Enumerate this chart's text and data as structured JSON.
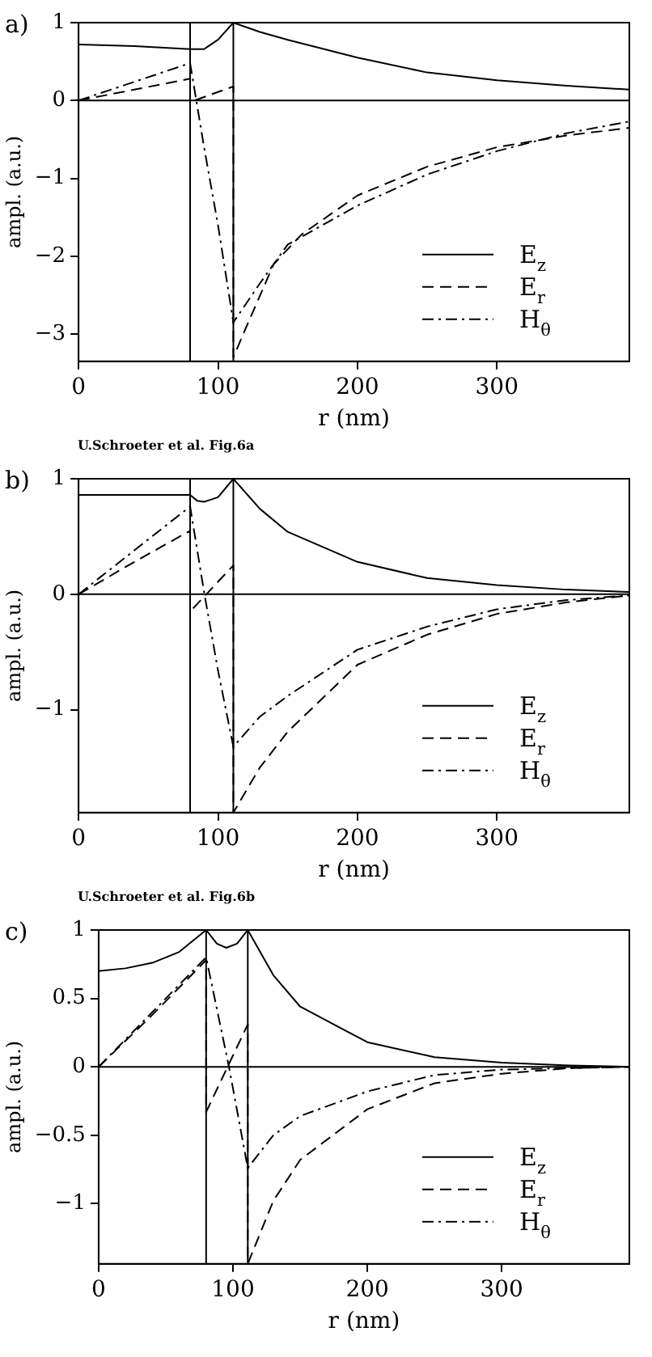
{
  "chart_data": [
    {
      "type": "line",
      "title": "a)",
      "xlabel": "r (nm)",
      "ylabel": "ampl. (a.u.)",
      "xlim": [
        0,
        395
      ],
      "xticks": [
        0,
        100,
        200,
        300
      ],
      "ylim": [
        -3.35,
        1
      ],
      "yticks": [
        {
          "value": -3,
          "label": "−3"
        },
        {
          "value": -2,
          "label": "−2"
        },
        {
          "value": -1,
          "label": "−1"
        },
        0,
        1
      ],
      "grid": false,
      "legend": "bottom right",
      "marker": "none",
      "ref_lines": [
        {
          "axis": "x",
          "value": 80,
          "color": "#000000"
        },
        {
          "axis": "x",
          "value": 111,
          "color": "#000000"
        },
        {
          "axis": "y",
          "value": 0,
          "color": "#000000"
        }
      ],
      "annotations": [
        "U.Schroeter et al.  Fig.6a"
      ],
      "series": [
        {
          "name": "E$_{z}$",
          "color": "#000000",
          "line_style": "solid",
          "x": [
            0,
            40,
            80,
            90,
            100,
            111,
            130,
            150,
            200,
            250,
            300,
            350,
            395
          ],
          "values": [
            0.72,
            0.7,
            0.66,
            0.66,
            0.78,
            1.0,
            0.88,
            0.78,
            0.55,
            0.36,
            0.26,
            0.19,
            0.14
          ]
        },
        {
          "name": "E$_{r}$",
          "color": "#000000",
          "line_style": "dashed",
          "x": [
            0,
            40,
            80,
            80,
            111,
            111,
            120,
            140,
            160,
            200,
            250,
            300,
            350,
            395
          ],
          "values": [
            0,
            0.14,
            0.28,
            -0.02,
            0.18,
            -3.3,
            -2.92,
            -2.1,
            -1.72,
            -1.22,
            -0.85,
            -0.6,
            -0.45,
            -0.35
          ]
        },
        {
          "name": "H$_{θ}$",
          "color": "#000000",
          "line_style": "dashdot",
          "x": [
            0,
            40,
            80,
            90,
            100,
            111,
            130,
            150,
            200,
            250,
            300,
            350,
            395
          ],
          "values": [
            0,
            0.24,
            0.48,
            -0.6,
            -1.6,
            -2.85,
            -2.35,
            -1.85,
            -1.35,
            -0.95,
            -0.65,
            -0.42,
            -0.27
          ]
        }
      ]
    },
    {
      "type": "line",
      "title": "b)",
      "xlabel": "r (nm)",
      "ylabel": "ampl. (a.u.)",
      "xlim": [
        0,
        395
      ],
      "xticks": [
        0,
        100,
        200,
        300
      ],
      "ylim": [
        -1.89,
        1
      ],
      "yticks": [
        {
          "value": -1,
          "label": "−1"
        },
        0,
        1
      ],
      "grid": false,
      "legend": "bottom right",
      "marker": "none",
      "ref_lines": [
        {
          "axis": "x",
          "value": 80,
          "color": "#000000"
        },
        {
          "axis": "x",
          "value": 111,
          "color": "#000000"
        },
        {
          "axis": "y",
          "value": 0,
          "color": "#000000"
        }
      ],
      "annotations": [
        "U.Schroeter et al.  Fig.6b"
      ],
      "series": [
        {
          "name": "E$_{z}$",
          "color": "#000000",
          "line_style": "solid",
          "x": [
            0,
            80,
            85,
            90,
            100,
            111,
            130,
            150,
            200,
            250,
            300,
            350,
            395
          ],
          "values": [
            0.86,
            0.86,
            0.81,
            0.8,
            0.84,
            1.0,
            0.74,
            0.54,
            0.28,
            0.14,
            0.08,
            0.04,
            0.02
          ]
        },
        {
          "name": "E$_{r}$",
          "color": "#000000",
          "line_style": "dashed",
          "x": [
            0,
            40,
            80,
            80,
            111,
            111,
            130,
            150,
            200,
            250,
            300,
            350,
            395
          ],
          "values": [
            0,
            0.28,
            0.55,
            -0.15,
            0.25,
            -1.89,
            -1.5,
            -1.19,
            -0.61,
            -0.35,
            -0.17,
            -0.07,
            -0.01
          ]
        },
        {
          "name": "H$_{θ}$",
          "color": "#000000",
          "line_style": "dashdot",
          "x": [
            0,
            40,
            80,
            90,
            100,
            111,
            130,
            150,
            200,
            250,
            300,
            350,
            395
          ],
          "values": [
            0,
            0.38,
            0.76,
            0.02,
            -0.66,
            -1.32,
            -1.06,
            -0.88,
            -0.48,
            -0.28,
            -0.13,
            -0.05,
            -0.01
          ]
        }
      ]
    },
    {
      "type": "line",
      "title": "c)",
      "xlabel": "r (nm)",
      "ylabel": "ampl. (a.u.)",
      "xlim": [
        0,
        395
      ],
      "xticks": [
        0,
        100,
        200,
        300
      ],
      "ylim": [
        -1.44,
        1
      ],
      "yticks": [
        {
          "value": -1,
          "label": "−1"
        },
        {
          "value": -0.5,
          "label": "−0.5"
        },
        0,
        0.5,
        1
      ],
      "grid": false,
      "legend": "bottom right",
      "marker": "none",
      "ref_lines": [
        {
          "axis": "x",
          "value": 80,
          "color": "#000000"
        },
        {
          "axis": "x",
          "value": 111,
          "color": "#000000"
        },
        {
          "axis": "y",
          "value": 0,
          "color": "#000000"
        }
      ],
      "series": [
        {
          "name": "E$_{z}$",
          "color": "#000000",
          "line_style": "solid",
          "x": [
            0,
            20,
            40,
            60,
            80,
            88,
            95,
            103,
            111,
            130,
            150,
            200,
            250,
            300,
            350,
            395
          ],
          "values": [
            0.7,
            0.72,
            0.76,
            0.84,
            1.0,
            0.9,
            0.87,
            0.9,
            1.0,
            0.67,
            0.44,
            0.18,
            0.07,
            0.03,
            0.01,
            0
          ]
        },
        {
          "name": "E$_{r}$",
          "color": "#000000",
          "line_style": "dashed",
          "x": [
            0,
            40,
            80,
            80,
            111,
            111,
            130,
            150,
            200,
            250,
            300,
            350,
            395
          ],
          "values": [
            0,
            0.38,
            0.78,
            -0.33,
            0.31,
            -1.44,
            -0.98,
            -0.68,
            -0.31,
            -0.12,
            -0.05,
            -0.01,
            0
          ]
        },
        {
          "name": "H$_{θ}$",
          "color": "#000000",
          "line_style": "dashdot",
          "x": [
            0,
            40,
            80,
            97,
            111,
            130,
            150,
            200,
            250,
            300,
            350,
            395
          ],
          "values": [
            0,
            0.4,
            0.8,
            0,
            -0.74,
            -0.5,
            -0.36,
            -0.18,
            -0.06,
            -0.02,
            -0.01,
            0
          ]
        }
      ]
    }
  ]
}
